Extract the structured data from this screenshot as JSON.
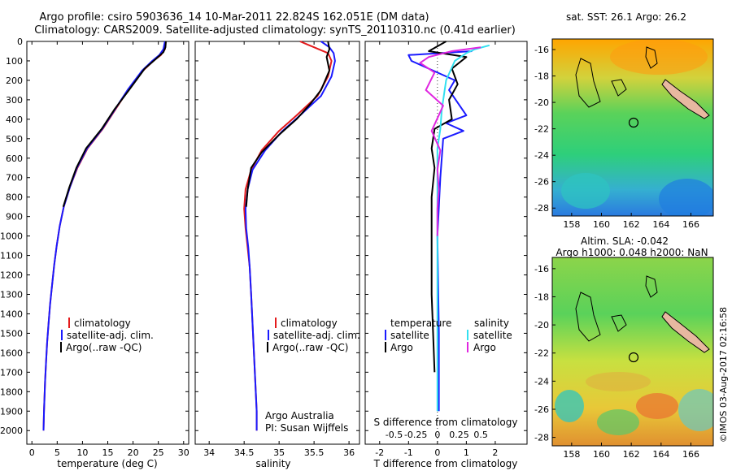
{
  "header": {
    "line1": "Argo profile: csiro 5903636_14 10-Mar-2011 22.824S 162.051E (DM data)",
    "line2": "Climatology: CARS2009. Satellite-adjusted climatology: synTS_20110310.nc (0.41d earlier)"
  },
  "colors": {
    "climatology": "#e41a1c",
    "satellite": "#1a1aff",
    "argo": "#000000",
    "salinity_satellite": "#33e0f0",
    "salinity_argo": "#e026e0"
  },
  "chart_data": [
    {
      "type": "line",
      "name": "temperature-profile",
      "xlabel": "temperature (deg C)",
      "ylabel": "",
      "xlim": [
        -1,
        31
      ],
      "ylim": [
        2070,
        0
      ],
      "xticks": [
        0,
        5,
        10,
        15,
        20,
        25,
        30
      ],
      "xtick_labels": [
        "0",
        "5",
        "10",
        "15",
        "20",
        "25",
        "30"
      ],
      "yticks": [
        0,
        100,
        200,
        300,
        400,
        500,
        600,
        700,
        800,
        900,
        1000,
        1100,
        1200,
        1300,
        1400,
        1500,
        1600,
        1700,
        1800,
        1900,
        2000
      ],
      "ytick_labels": [
        "0",
        "100",
        "200",
        "300",
        "400",
        "500",
        "600",
        "700",
        "800",
        "900",
        "1000",
        "1100",
        "1200",
        "1300",
        "1400",
        "1500",
        "1600",
        "1700",
        "1800",
        "1900",
        "2000"
      ],
      "legend": [
        "climatology",
        "satellite-adj. clim.",
        "Argo(..raw -QC)"
      ],
      "series": [
        {
          "name": "climatology",
          "color_key": "climatology",
          "x": [
            26.4,
            26.3,
            25.5,
            24.0,
            22.0,
            19.0,
            16.5,
            14.0,
            11.0,
            9.0,
            7.5,
            6.3,
            5.5,
            4.9,
            4.4,
            4.0,
            3.6,
            3.3,
            3.0,
            2.8,
            2.6,
            2.4,
            2.3
          ],
          "depth": [
            0,
            40,
            70,
            100,
            150,
            250,
            350,
            450,
            550,
            650,
            750,
            850,
            950,
            1050,
            1150,
            1250,
            1350,
            1450,
            1550,
            1650,
            1750,
            1900,
            2000
          ]
        },
        {
          "name": "satellite-adj. clim.",
          "color_key": "satellite",
          "x": [
            26.3,
            26.0,
            25.2,
            23.8,
            21.8,
            18.9,
            16.4,
            13.9,
            10.9,
            8.9,
            7.5,
            6.3,
            5.5,
            4.9,
            4.4,
            4.0,
            3.6,
            3.3,
            3.0,
            2.8,
            2.6,
            2.4,
            2.3
          ],
          "depth": [
            0,
            40,
            70,
            100,
            150,
            250,
            350,
            450,
            550,
            650,
            750,
            850,
            950,
            1050,
            1150,
            1250,
            1350,
            1450,
            1550,
            1650,
            1750,
            1900,
            2000
          ]
        },
        {
          "name": "Argo(..raw -QC)",
          "color_key": "argo",
          "x": [
            26.5,
            26.4,
            26.0,
            24.5,
            22.3,
            19.2,
            16.3,
            13.8,
            10.7,
            8.8,
            7.4,
            6.2
          ],
          "depth": [
            0,
            30,
            55,
            90,
            140,
            250,
            350,
            450,
            550,
            650,
            750,
            850
          ]
        }
      ]
    },
    {
      "type": "line",
      "name": "salinity-profile",
      "xlabel": "salinity",
      "ylabel": "",
      "xlim": [
        33.8,
        36.15
      ],
      "ylim": [
        2070,
        0
      ],
      "xticks": [
        34,
        34.5,
        35,
        35.5,
        36
      ],
      "xtick_labels": [
        "34",
        "34.5",
        "35",
        "35.5",
        "36"
      ],
      "legend": [
        "climatology",
        "satellite-adj. clim.",
        "Argo(..raw -QC)"
      ],
      "annotations": [
        "Argo Australia",
        "PI: Susan Wijffels"
      ],
      "series": [
        {
          "name": "climatology",
          "color_key": "climatology",
          "x": [
            35.3,
            35.5,
            35.7,
            35.75,
            35.7,
            35.55,
            35.25,
            35.0,
            34.75,
            34.6,
            34.52,
            34.5,
            34.52,
            34.55,
            34.58,
            34.6,
            34.62,
            34.64,
            34.66,
            34.68,
            34.68
          ],
          "depth": [
            0,
            30,
            60,
            100,
            180,
            280,
            380,
            460,
            560,
            660,
            760,
            860,
            960,
            1060,
            1160,
            1300,
            1450,
            1600,
            1750,
            1900,
            2000
          ]
        },
        {
          "name": "satellite-adj. clim.",
          "color_key": "satellite",
          "x": [
            35.6,
            35.72,
            35.78,
            35.8,
            35.75,
            35.6,
            35.3,
            35.05,
            34.8,
            34.62,
            34.55,
            34.52,
            34.53,
            34.56,
            34.58,
            34.6,
            34.62,
            34.64,
            34.66,
            34.68,
            34.68
          ],
          "depth": [
            0,
            30,
            60,
            100,
            180,
            280,
            380,
            460,
            560,
            660,
            760,
            860,
            960,
            1060,
            1160,
            1300,
            1450,
            1600,
            1750,
            1900,
            2000
          ]
        },
        {
          "name": "Argo(..raw -QC)",
          "color_key": "argo",
          "x": [
            35.7,
            35.72,
            35.68,
            35.72,
            35.6,
            35.45,
            35.25,
            35.0,
            34.75,
            34.6,
            34.55,
            34.53
          ],
          "depth": [
            0,
            40,
            80,
            150,
            250,
            320,
            400,
            480,
            570,
            650,
            760,
            850
          ]
        }
      ]
    },
    {
      "type": "line",
      "name": "difference-profile",
      "xlabel": "T difference from climatology",
      "xlabel2": "S difference from climatology",
      "xlim": [
        -2.5,
        3.1
      ],
      "ylim": [
        2070,
        0
      ],
      "xticks": [
        -2,
        -1,
        0,
        1,
        2
      ],
      "xtick_labels": [
        "-2",
        "-1",
        "0",
        "1",
        "2"
      ],
      "xticks2": [
        -0.5,
        -0.25,
        0,
        0.25,
        0.5
      ],
      "xtick_labels2": [
        "-0.5",
        "-0.25",
        "0",
        "0.25",
        "0.5"
      ],
      "legend_title_t": "temperature",
      "legend_title_s": "salinity",
      "legend": [
        "satellite",
        "Argo",
        "satellite",
        "Argo"
      ],
      "series": [
        {
          "name": "T satellite",
          "color_key": "satellite",
          "x": [
            1.2,
            -1.0,
            -0.9,
            0.6,
            0.4,
            1.0,
            0.3,
            0.9,
            0.2,
            0.1,
            0.0,
            0.05,
            0.05,
            0.05
          ],
          "depth": [
            50,
            70,
            100,
            200,
            250,
            380,
            420,
            460,
            500,
            700,
            1000,
            1500,
            1800,
            1900
          ]
        },
        {
          "name": "T Argo",
          "color_key": "argo",
          "x": [
            0.3,
            -0.3,
            1.0,
            0.5,
            0.7,
            0.4,
            0.5,
            -0.1,
            -0.2,
            -0.1,
            -0.2,
            -0.2,
            -0.2,
            -0.15,
            -0.1
          ],
          "depth": [
            0,
            50,
            80,
            140,
            220,
            300,
            400,
            450,
            550,
            650,
            800,
            1000,
            1300,
            1500,
            1700
          ]
        },
        {
          "name": "S satellite",
          "color_key": "salinity_satellite",
          "x": [
            1.8,
            1.3,
            1.0,
            0.6,
            0.3,
            0.15,
            0.1,
            0.0,
            0.0,
            0.0,
            0.0,
            0.0,
            0.0
          ],
          "depth": [
            20,
            40,
            60,
            100,
            200,
            350,
            450,
            550,
            700,
            1000,
            1400,
            1800,
            1900
          ]
        },
        {
          "name": "S Argo",
          "color_key": "salinity_argo",
          "x": [
            1.5,
            0.5,
            -0.3,
            -0.6,
            -0.1,
            -0.4,
            0.2,
            -0.2,
            0.1,
            0.0,
            0.05,
            0.0,
            0.0,
            0.0
          ],
          "depth": [
            30,
            50,
            80,
            110,
            160,
            250,
            330,
            460,
            560,
            660,
            760,
            860,
            960,
            1000
          ]
        }
      ]
    }
  ],
  "sst_map": {
    "title": "sat. SST: 26.1  Argo: 26.2",
    "xtick_labels": [
      "158",
      "160",
      "162",
      "164",
      "166"
    ],
    "ytick_labels": [
      "-16",
      "-18",
      "-20",
      "-22",
      "-24",
      "-26",
      "-28"
    ]
  },
  "sla_map": {
    "title1": "Altim. SLA: -0.042",
    "title2": "Argo h1000: 0.048 h2000: NaN",
    "xtick_labels": [
      "158",
      "160",
      "162",
      "164",
      "166"
    ],
    "ytick_labels": [
      "-16",
      "-18",
      "-20",
      "-22",
      "-24",
      "-26",
      "-28"
    ]
  },
  "footer": {
    "credit": "©IMOS 03-Aug-2017 02:16:58"
  }
}
